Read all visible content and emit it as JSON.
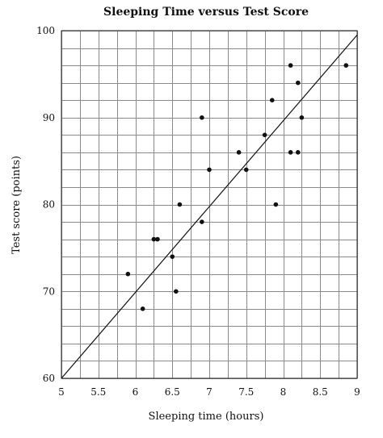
{
  "chart_data": {
    "type": "scatter",
    "title": "Sleeping Time versus Test Score",
    "xlabel": "Sleeping time (hours)",
    "ylabel": "Test  score (points)",
    "xlim": [
      5,
      9
    ],
    "ylim": [
      60,
      100
    ],
    "x_ticks": [
      5,
      5.5,
      6,
      6.5,
      7,
      7.5,
      8,
      8.5,
      9
    ],
    "x_tick_labels": [
      "5",
      "5.5",
      "6",
      "6.5",
      "7",
      "7.5",
      "8",
      "8.5",
      "9"
    ],
    "y_ticks": [
      60,
      70,
      80,
      90,
      100
    ],
    "y_tick_labels": [
      "60",
      "70",
      "80",
      "90",
      "100"
    ],
    "grid": true,
    "grid_x_step": 0.25,
    "grid_y_step": 2,
    "trend_line": {
      "x": [
        5,
        9
      ],
      "y": [
        60,
        99.5
      ]
    },
    "points": [
      {
        "x": 5.9,
        "y": 72
      },
      {
        "x": 6.1,
        "y": 68
      },
      {
        "x": 6.25,
        "y": 76
      },
      {
        "x": 6.3,
        "y": 76
      },
      {
        "x": 6.5,
        "y": 74
      },
      {
        "x": 6.55,
        "y": 70
      },
      {
        "x": 6.6,
        "y": 80
      },
      {
        "x": 6.9,
        "y": 90
      },
      {
        "x": 6.9,
        "y": 78
      },
      {
        "x": 7.0,
        "y": 84
      },
      {
        "x": 7.4,
        "y": 86
      },
      {
        "x": 7.5,
        "y": 84
      },
      {
        "x": 7.75,
        "y": 88
      },
      {
        "x": 7.85,
        "y": 92
      },
      {
        "x": 7.9,
        "y": 80
      },
      {
        "x": 8.1,
        "y": 96
      },
      {
        "x": 8.1,
        "y": 86
      },
      {
        "x": 8.2,
        "y": 94
      },
      {
        "x": 8.2,
        "y": 86
      },
      {
        "x": 8.25,
        "y": 90
      },
      {
        "x": 8.85,
        "y": 96
      }
    ]
  }
}
